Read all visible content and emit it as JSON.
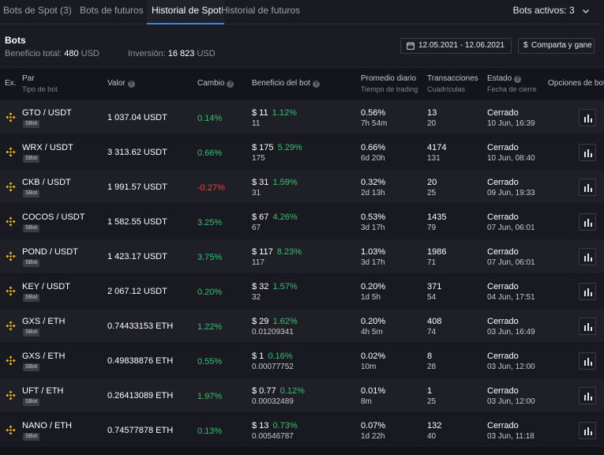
{
  "tabs": [
    {
      "label": "Bots de Spot (3)"
    },
    {
      "label": "Bots de futuros"
    },
    {
      "label": "Historial de Spot"
    },
    {
      "label": "Historial de futuros"
    }
  ],
  "bots_activos": "Bots activos: 3",
  "header": {
    "title": "Bots",
    "beneficio_label": "Beneficio total:",
    "beneficio_value": "480",
    "beneficio_unit": "USD",
    "inversion_label": "Inversión:",
    "inversion_value": "16 823",
    "inversion_unit": "USD",
    "date_range": "12.05.2021 - 12.06.2021",
    "share_label": "Comparta y gane"
  },
  "columns": {
    "ex": "Ex.",
    "par": "Par",
    "tipo": "Tipo de bot",
    "valor": "Valor",
    "cambio": "Cambio",
    "beneficio": "Beneficio del bot",
    "promedio": "Promedio diario",
    "tiempo": "Tiempo de trading",
    "transacciones": "Transacciones",
    "cuadriculas": "Cuadrículas",
    "estado": "Estado",
    "fecha_cierre": "Fecha de cierre",
    "opciones": "Opciones de bot"
  },
  "rows": [
    {
      "pair": "GTO / USDT",
      "type": "SBot",
      "valor": "1 037.04 USDT",
      "cambio": "0.14%",
      "cambio_dir": "pos",
      "ben": "$ 11",
      "ben_pct": "1.12%",
      "ben_sub": "11",
      "prom": "0.56%",
      "prom_sub": "7h 54m",
      "trans": "13",
      "trans_sub": "20",
      "estado": "Cerrado",
      "fecha": "10 Jun, 16:39"
    },
    {
      "pair": "WRX / USDT",
      "type": "SBot",
      "valor": "3 313.62 USDT",
      "cambio": "0.66%",
      "cambio_dir": "pos",
      "ben": "$ 175",
      "ben_pct": "5.29%",
      "ben_sub": "175",
      "prom": "0.66%",
      "prom_sub": "6d 20h",
      "trans": "4174",
      "trans_sub": "131",
      "estado": "Cerrado",
      "fecha": "10 Jun, 08:40"
    },
    {
      "pair": "CKB / USDT",
      "type": "SBot",
      "valor": "1 991.57 USDT",
      "cambio": "-0.27%",
      "cambio_dir": "neg",
      "ben": "$ 31",
      "ben_pct": "1.59%",
      "ben_sub": "31",
      "prom": "0.32%",
      "prom_sub": "2d 13h",
      "trans": "20",
      "trans_sub": "25",
      "estado": "Cerrado",
      "fecha": "09 Jun, 19:33"
    },
    {
      "pair": "COCOS / USDT",
      "type": "SBot",
      "valor": "1 582.55 USDT",
      "cambio": "3.25%",
      "cambio_dir": "pos",
      "ben": "$ 67",
      "ben_pct": "4.26%",
      "ben_sub": "67",
      "prom": "0.53%",
      "prom_sub": "3d 17h",
      "trans": "1435",
      "trans_sub": "79",
      "estado": "Cerrado",
      "fecha": "07 Jun, 06:01"
    },
    {
      "pair": "POND / USDT",
      "type": "SBot",
      "valor": "1 423.17 USDT",
      "cambio": "3.75%",
      "cambio_dir": "pos",
      "ben": "$ 117",
      "ben_pct": "8.23%",
      "ben_sub": "117",
      "prom": "1.03%",
      "prom_sub": "3d 17h",
      "trans": "1986",
      "trans_sub": "71",
      "estado": "Cerrado",
      "fecha": "07 Jun, 06:01"
    },
    {
      "pair": "KEY / USDT",
      "type": "SBot",
      "valor": "2 067.12 USDT",
      "cambio": "0.20%",
      "cambio_dir": "pos",
      "ben": "$ 32",
      "ben_pct": "1.57%",
      "ben_sub": "32",
      "prom": "0.20%",
      "prom_sub": "1d 5h",
      "trans": "371",
      "trans_sub": "54",
      "estado": "Cerrado",
      "fecha": "04 Jun, 17:51"
    },
    {
      "pair": "GXS / ETH",
      "type": "SBot",
      "valor": "0.74433153 ETH",
      "cambio": "1.22%",
      "cambio_dir": "pos",
      "ben": "$ 29",
      "ben_pct": "1.62%",
      "ben_sub": "0.01209341",
      "prom": "0.20%",
      "prom_sub": "4h 5m",
      "trans": "408",
      "trans_sub": "74",
      "estado": "Cerrado",
      "fecha": "03 Jun, 16:49"
    },
    {
      "pair": "GXS / ETH",
      "type": "SBot",
      "valor": "0.49838876 ETH",
      "cambio": "0.55%",
      "cambio_dir": "pos",
      "ben": "$ 1",
      "ben_pct": "0.16%",
      "ben_sub": "0.00077752",
      "prom": "0.02%",
      "prom_sub": "10m",
      "trans": "8",
      "trans_sub": "28",
      "estado": "Cerrado",
      "fecha": "03 Jun, 12:00"
    },
    {
      "pair": "UFT / ETH",
      "type": "SBot",
      "valor": "0.26413089 ETH",
      "cambio": "1.97%",
      "cambio_dir": "pos",
      "ben": "$ 0.77",
      "ben_pct": "0.12%",
      "ben_sub": "0.00032489",
      "prom": "0.01%",
      "prom_sub": "8m",
      "trans": "1",
      "trans_sub": "25",
      "estado": "Cerrado",
      "fecha": "03 Jun, 12:00"
    },
    {
      "pair": "NANO / ETH",
      "type": "SBot",
      "valor": "0.74577878 ETH",
      "cambio": "0.13%",
      "cambio_dir": "pos",
      "ben": "$ 13",
      "ben_pct": "0.73%",
      "ben_sub": "0.00546787",
      "prom": "0.07%",
      "prom_sub": "1d 22h",
      "trans": "132",
      "trans_sub": "40",
      "estado": "Cerrado",
      "fecha": "03 Jun, 11:18"
    }
  ]
}
